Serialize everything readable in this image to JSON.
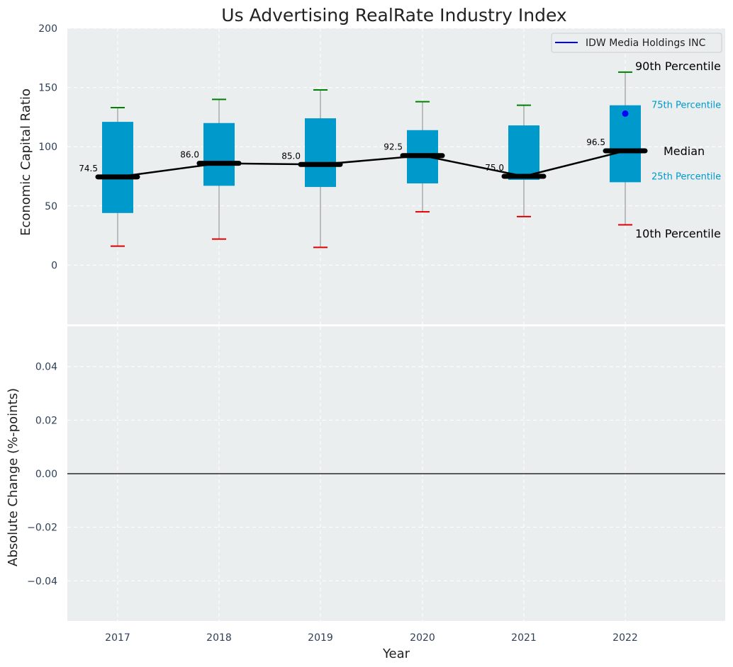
{
  "colors": {
    "panel_bg": "#eaeeef",
    "box": "#0099cc",
    "whisker_line": "#888888",
    "p90_cap": "#008000",
    "p10_cap": "#e00000",
    "median": "#000000",
    "company_point": "#0000ff",
    "pct_annotation_small": "#0099cc",
    "zero_line": "#000000"
  },
  "chart_data": [
    {
      "type": "box",
      "title": "Us Advertising RealRate Industry Index",
      "xlabel": "",
      "ylabel": "Economic Capital Ratio",
      "categories": [
        "2017",
        "2018",
        "2019",
        "2020",
        "2021",
        "2022"
      ],
      "ylim": [
        -50,
        200
      ],
      "yticks": [
        0,
        50,
        100,
        150,
        200
      ],
      "grid": true,
      "percentiles": {
        "p10": [
          16,
          22,
          15,
          45,
          41,
          34
        ],
        "p25": [
          44,
          67,
          66,
          69,
          72,
          70
        ],
        "median": [
          74.5,
          86.0,
          85.0,
          92.5,
          75.0,
          96.5
        ],
        "p75": [
          121,
          120,
          124,
          114,
          118,
          135
        ],
        "p90": [
          133,
          140,
          148,
          138,
          135,
          163
        ]
      },
      "median_labels": [
        "74.5",
        "86.0",
        "85.0",
        "92.5",
        "75.0",
        "96.5"
      ],
      "company_series": {
        "name": "IDW Media Holdings INC",
        "points": [
          {
            "x": "2022",
            "y": 128
          }
        ]
      },
      "legend": {
        "position": "top-right",
        "entries": [
          "IDW Media Holdings INC"
        ]
      },
      "annotations": {
        "p90": "90th Percentile",
        "p75": "75th Percentile",
        "median": "Median",
        "p25": "25th Percentile",
        "p10": "10th Percentile"
      }
    },
    {
      "type": "line",
      "title": "",
      "xlabel": "Year",
      "ylabel": "Absolute Change (%-points)",
      "categories": [
        "2017",
        "2018",
        "2019",
        "2020",
        "2021",
        "2022"
      ],
      "ylim": [
        -0.055,
        0.055
      ],
      "yticks": [
        -0.04,
        -0.02,
        0.0,
        0.02,
        0.04
      ],
      "ytick_labels": [
        "−0.04",
        "−0.02",
        "0.00",
        "0.02",
        "0.04"
      ],
      "reference_line": 0,
      "grid": true,
      "series": []
    }
  ]
}
